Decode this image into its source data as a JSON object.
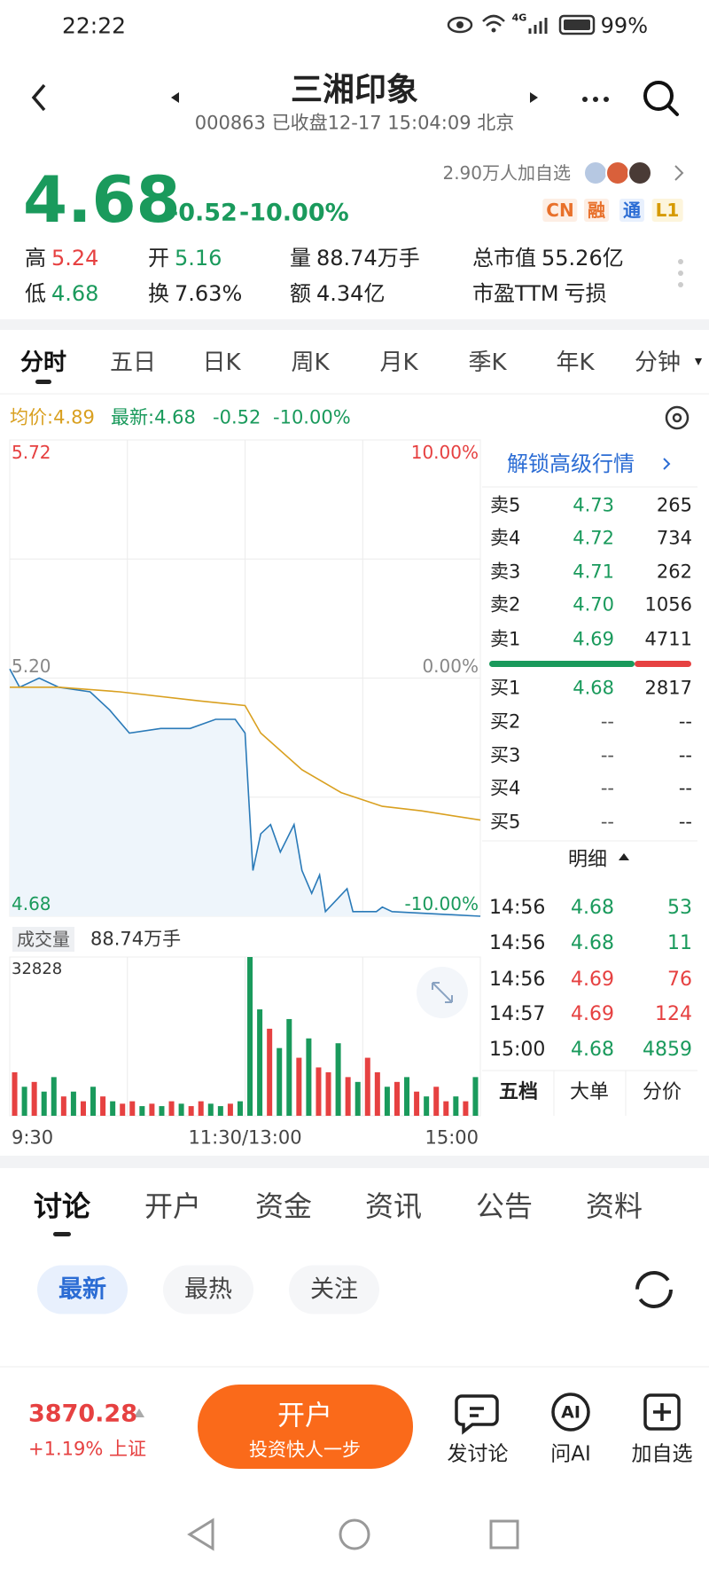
{
  "status": {
    "time": "22:22",
    "network": "4G",
    "battery": "99%"
  },
  "header": {
    "title": "三湘印象",
    "subtitle": "000863 已收盘12-17 15:04:09 北京"
  },
  "quote": {
    "price": "4.68",
    "change": "-0.52",
    "pct": "-10.00%",
    "followers": "2.90万人加自选",
    "badges": [
      "CN",
      "融",
      "通",
      "L1"
    ]
  },
  "stats": [
    {
      "label": "高",
      "value": "5.24",
      "color": "#e64141"
    },
    {
      "label": "开",
      "value": "5.16",
      "color": "#1a9a5c"
    },
    {
      "label": "量",
      "value": "88.74万手"
    },
    {
      "label": "总市值",
      "value": "55.26亿"
    },
    {
      "label": "低",
      "value": "4.68",
      "color": "#1a9a5c"
    },
    {
      "label": "换",
      "value": "7.63%"
    },
    {
      "label": "额",
      "value": "4.34亿"
    },
    {
      "label": "市盈TTM",
      "value": "亏损"
    }
  ],
  "tabs": [
    "分时",
    "五日",
    "日K",
    "周K",
    "月K",
    "季K",
    "年K",
    "分钟"
  ],
  "legend": {
    "avg": "均价:4.89",
    "latest": "最新:4.68",
    "change": "-0.52",
    "pct": "-10.00%"
  },
  "chart_data": [
    {
      "type": "line",
      "xlim": [
        0,
        240
      ],
      "xticks": [
        {
          "value": 0,
          "label": "9:30"
        },
        {
          "value": 120,
          "label": "11:30/13:00"
        },
        {
          "value": 240,
          "label": "15:00"
        }
      ],
      "ylim": [
        4.68,
        5.72
      ],
      "yticks": [
        5.72,
        {
          "value": 5.2,
          "label": "5.20"
        },
        4.68
      ],
      "y2lim": [
        -10,
        10
      ],
      "y2ticks": [
        {
          "value": 10,
          "label": "10.00%"
        },
        {
          "value": 0,
          "label": "0.00%"
        },
        {
          "value": -10,
          "label": "-10.00%"
        }
      ],
      "grid": true,
      "series": [
        {
          "color": "#2a7ab8",
          "x": [
            0,
            5,
            15,
            25,
            41,
            51,
            61,
            77,
            92,
            105,
            115,
            120,
            122,
            124,
            128,
            133,
            138,
            145,
            149,
            154,
            158,
            161,
            172,
            175,
            187,
            190,
            195,
            240
          ],
          "values": [
            5.22,
            5.18,
            5.2,
            5.18,
            5.17,
            5.13,
            5.08,
            5.09,
            5.09,
            5.11,
            5.11,
            5.08,
            4.93,
            4.78,
            4.86,
            4.88,
            4.82,
            4.88,
            4.78,
            4.73,
            4.77,
            4.69,
            4.74,
            4.69,
            4.69,
            4.7,
            4.69,
            4.68
          ]
        },
        {
          "color": "#d9a020",
          "x": [
            0,
            25,
            56,
            97,
            120,
            128,
            149,
            169,
            190,
            210,
            240
          ],
          "values": [
            5.18,
            5.18,
            5.17,
            5.15,
            5.14,
            5.08,
            5.0,
            4.95,
            4.92,
            4.91,
            4.89
          ]
        }
      ]
    },
    {
      "type": "bar",
      "title": "成交量",
      "subtitle": "88.74万手",
      "ylim": [
        0,
        32828
      ],
      "yticks": [
        32828
      ],
      "xlim": [
        0,
        240
      ],
      "x": [
        2.5,
        7.5,
        12.5,
        17.5,
        22.5,
        27.5,
        32.5,
        37.5,
        42.5,
        47.5,
        52.5,
        57.5,
        62.5,
        67.5,
        72.5,
        77.5,
        82.5,
        87.5,
        92.5,
        97.5,
        102.5,
        107.5,
        112.5,
        117.5,
        122.5,
        127.5,
        132.5,
        137.5,
        142.5,
        147.5,
        152.5,
        157.5,
        162.5,
        167.5,
        172.5,
        177.5,
        182.5,
        187.5,
        192.5,
        197.5,
        202.5,
        207.5,
        212.5,
        217.5,
        222.5,
        227.5,
        232.5,
        237.5
      ],
      "values": [
        9000,
        6000,
        7000,
        5000,
        8000,
        4000,
        5000,
        3000,
        6000,
        4000,
        3000,
        2500,
        3000,
        2000,
        2500,
        2000,
        3000,
        2500,
        2000,
        3000,
        2500,
        2000,
        2500,
        3000,
        32828,
        22000,
        18000,
        14000,
        20000,
        12000,
        16000,
        10000,
        9000,
        15000,
        8000,
        7000,
        12000,
        9000,
        6000,
        7000,
        8000,
        5000,
        4000,
        6000,
        3000,
        4000,
        3000,
        8000
      ],
      "colors": [
        "#e64141",
        "#1a9a5c",
        "#e64141",
        "#1a9a5c",
        "#1a9a5c",
        "#e64141",
        "#1a9a5c",
        "#e64141",
        "#1a9a5c",
        "#e64141",
        "#1a9a5c",
        "#e64141",
        "#e64141",
        "#1a9a5c",
        "#e64141",
        "#1a9a5c",
        "#e64141",
        "#1a9a5c",
        "#e64141",
        "#e64141",
        "#1a9a5c",
        "#1a9a5c",
        "#e64141",
        "#1a9a5c",
        "#1a9a5c",
        "#1a9a5c",
        "#e64141",
        "#1a9a5c",
        "#1a9a5c",
        "#e64141",
        "#1a9a5c",
        "#e64141",
        "#e64141",
        "#1a9a5c",
        "#e64141",
        "#1a9a5c",
        "#e64141",
        "#e64141",
        "#1a9a5c",
        "#e64141",
        "#1a9a5c",
        "#e64141",
        "#1a9a5c",
        "#e64141",
        "#e64141",
        "#1a9a5c",
        "#e64141",
        "#1a9a5c"
      ]
    }
  ],
  "order_book": {
    "unlock": "解锁高级行情",
    "asks": [
      {
        "label": "卖5",
        "price": "4.73",
        "volume": "265"
      },
      {
        "label": "卖4",
        "price": "4.72",
        "volume": "734"
      },
      {
        "label": "卖3",
        "price": "4.71",
        "volume": "262"
      },
      {
        "label": "卖2",
        "price": "4.70",
        "volume": "1056"
      },
      {
        "label": "卖1",
        "price": "4.69",
        "volume": "4711"
      }
    ],
    "bids": [
      {
        "label": "买1",
        "price": "4.68",
        "volume": "2817"
      },
      {
        "label": "买2",
        "price": "--",
        "volume": "--"
      },
      {
        "label": "买3",
        "price": "--",
        "volume": "--"
      },
      {
        "label": "买4",
        "price": "--",
        "volume": "--"
      },
      {
        "label": "买5",
        "price": "--",
        "volume": "--"
      }
    ]
  },
  "details": {
    "title": "明细",
    "rows": [
      {
        "time": "14:56",
        "price": "4.68",
        "volume": "53",
        "color": "#1a9a5c"
      },
      {
        "time": "14:56",
        "price": "4.68",
        "volume": "11",
        "color": "#1a9a5c"
      },
      {
        "time": "14:56",
        "price": "4.69",
        "volume": "76",
        "color": "#e64141"
      },
      {
        "time": "14:57",
        "price": "4.69",
        "volume": "124",
        "color": "#e64141"
      },
      {
        "time": "15:00",
        "price": "4.68",
        "volume": "4859",
        "color": "#1a9a5c"
      }
    ],
    "tabs": [
      "五档",
      "大单",
      "分价"
    ]
  },
  "discussion": {
    "tabs": [
      "讨论",
      "开户",
      "资金",
      "资讯",
      "公告",
      "资料"
    ],
    "filters": [
      "最新",
      "最热",
      "关注"
    ]
  },
  "footer": {
    "index_value": "3870.28",
    "index_change": "+1.19% 上证",
    "button": "开户",
    "button_sub": "投资快人一步",
    "ai_icon": "AI",
    "actions": [
      "发讨论",
      "问AI",
      "加自选"
    ]
  }
}
